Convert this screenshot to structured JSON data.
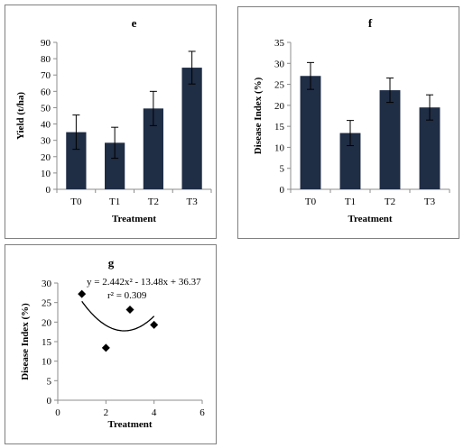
{
  "chart_data": [
    {
      "panel": "e",
      "type": "bar",
      "title": "e",
      "xlabel": "Treatment",
      "ylabel": "Yield  (t/ha)",
      "categories": [
        "T0",
        "T1",
        "T2",
        "T3"
      ],
      "series": [
        {
          "values": [
            35,
            28.5,
            49.5,
            74.5
          ],
          "errors": [
            10.5,
            9.5,
            10.5,
            10
          ]
        }
      ],
      "ylim": [
        0,
        90
      ],
      "yticks": [
        0,
        10,
        20,
        30,
        40,
        50,
        60,
        70,
        80,
        90
      ],
      "bar_color": "#1f2d45",
      "grid": false
    },
    {
      "panel": "f",
      "type": "bar",
      "title": "f",
      "xlabel": "Treatment",
      "ylabel": "Disease Index  (%)",
      "categories": [
        "T0",
        "T1",
        "T2",
        "T3"
      ],
      "series": [
        {
          "values": [
            27,
            13.4,
            23.6,
            19.5
          ],
          "errors": [
            3.2,
            3,
            2.9,
            3
          ]
        }
      ],
      "ylim": [
        0,
        35
      ],
      "yticks": [
        0,
        5,
        10,
        15,
        20,
        25,
        30,
        35
      ],
      "bar_color": "#1f2d45",
      "grid": false
    },
    {
      "panel": "g",
      "type": "scatter",
      "title": "g",
      "xlabel": "Treatment",
      "ylabel": "Disease Index (%)",
      "x": [
        1,
        2,
        3,
        4
      ],
      "y": [
        27.2,
        13.4,
        23.2,
        19.3
      ],
      "xlim": [
        0,
        6
      ],
      "ylim": [
        0,
        30
      ],
      "xticks": [
        0,
        2,
        4,
        6
      ],
      "yticks": [
        0,
        5,
        10,
        15,
        20,
        25,
        30
      ],
      "trendline": {
        "type": "polynomial",
        "a": 2.442,
        "b": -13.48,
        "c": 36.37,
        "from": 1,
        "to": 4
      },
      "equation": "y = 2.442x² - 13.48x + 36.37",
      "r2": "r² = 0.309",
      "grid": false
    }
  ]
}
